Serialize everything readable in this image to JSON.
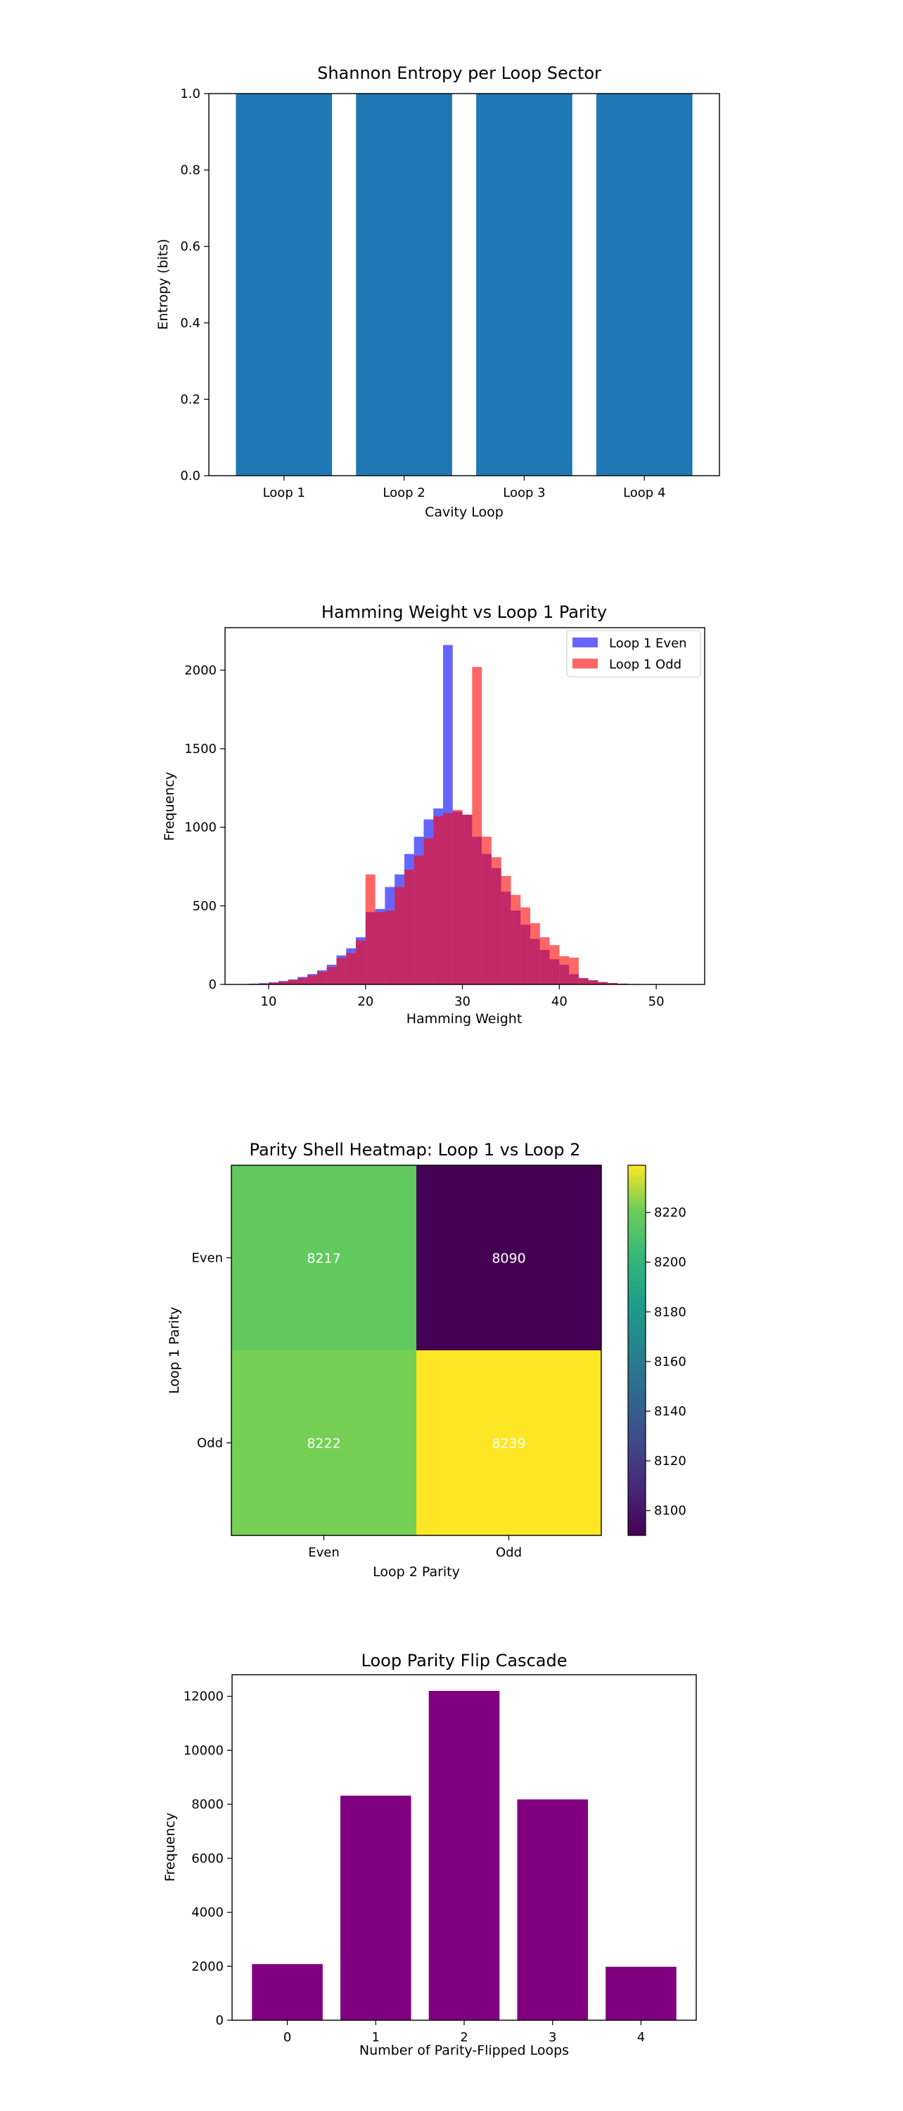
{
  "chart_data": [
    {
      "type": "bar",
      "title": "Shannon Entropy per Loop Sector",
      "xlabel": "Cavity Loop",
      "ylabel": "Entropy (bits)",
      "categories": [
        "Loop 1",
        "Loop 2",
        "Loop 3",
        "Loop 4"
      ],
      "values": [
        1.0,
        1.0,
        1.0,
        1.0
      ],
      "ylim": [
        0,
        1.0
      ],
      "yticks": [
        "0.0",
        "0.2",
        "0.4",
        "0.6",
        "0.8",
        "1.0"
      ],
      "color": "#1f77b4",
      "grid": false
    },
    {
      "type": "bar",
      "title": "Hamming Weight vs Loop 1 Parity",
      "xlabel": "Hamming Weight",
      "ylabel": "Frequency",
      "xlim": [
        5.5,
        55
      ],
      "ylim": [
        0,
        2270
      ],
      "xticks": [
        "10",
        "20",
        "30",
        "40",
        "50"
      ],
      "yticks": [
        "0",
        "500",
        "1000",
        "1500",
        "2000"
      ],
      "bin_edges": [
        8,
        9,
        10,
        11,
        12,
        13,
        14,
        15,
        16,
        17,
        18,
        19,
        20,
        21,
        22,
        23,
        24,
        25,
        26,
        27,
        28,
        29,
        30,
        31,
        32,
        33,
        34,
        35,
        36,
        37,
        38,
        39,
        40,
        41,
        42,
        43,
        44,
        45,
        46,
        47,
        48,
        49,
        50,
        51
      ],
      "legend_position": "top-right",
      "grid": false,
      "series": [
        {
          "name": "Loop 1 Even",
          "color": "#0000ff",
          "opacity": 0.6,
          "values": [
            5,
            8,
            14,
            22,
            32,
            48,
            66,
            90,
            125,
            185,
            230,
            300,
            460,
            480,
            620,
            700,
            830,
            940,
            1050,
            1120,
            2160,
            1100,
            1080,
            940,
            830,
            740,
            590,
            470,
            380,
            290,
            220,
            160,
            125,
            65,
            40,
            26,
            15,
            9,
            5,
            3,
            2,
            1,
            1
          ]
        },
        {
          "name": "Loop 1 Odd",
          "color": "#ff0000",
          "opacity": 0.6,
          "values": [
            3,
            6,
            10,
            18,
            28,
            42,
            58,
            80,
            110,
            170,
            200,
            280,
            700,
            460,
            470,
            620,
            730,
            820,
            930,
            1070,
            1090,
            1110,
            1080,
            2020,
            940,
            810,
            690,
            570,
            490,
            390,
            300,
            250,
            180,
            170,
            40,
            27,
            15,
            9,
            5,
            3,
            2,
            1,
            1
          ]
        }
      ]
    },
    {
      "type": "heatmap",
      "title": "Parity Shell Heatmap: Loop 1 vs Loop 2",
      "xlabel": "Loop 2 Parity",
      "ylabel": "Loop 1 Parity",
      "x_categories": [
        "Even",
        "Odd"
      ],
      "y_categories": [
        "Even",
        "Odd"
      ],
      "values": [
        [
          8217,
          8090
        ],
        [
          8222,
          8239
        ]
      ],
      "value_labels": [
        [
          "8217",
          "8090"
        ],
        [
          "8222",
          "8239"
        ]
      ],
      "colormap": "viridis",
      "vmin": 8090,
      "vmax": 8239,
      "colorbar_ticks": [
        "8100",
        "8120",
        "8140",
        "8160",
        "8180",
        "8200",
        "8220"
      ]
    },
    {
      "type": "bar",
      "title": "Loop Parity Flip Cascade",
      "xlabel": "Number of Parity-Flipped Loops",
      "ylabel": "Frequency",
      "categories": [
        "0",
        "1",
        "2",
        "3",
        "4"
      ],
      "values": [
        2080,
        8320,
        12200,
        8180,
        1980
      ],
      "ylim": [
        0,
        12800
      ],
      "yticks": [
        "0",
        "2000",
        "4000",
        "6000",
        "8000",
        "10000",
        "12000"
      ],
      "color": "#800080",
      "grid": false
    }
  ]
}
